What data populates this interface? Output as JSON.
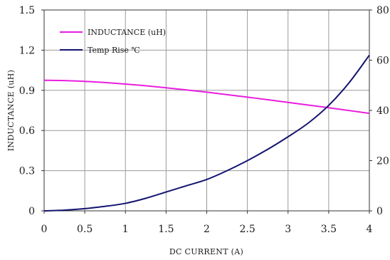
{
  "chart_data": {
    "type": "line",
    "xlabel": "DC CURRENT  (A)",
    "ylabel": "INDUCTANCE (uH)",
    "xlim": [
      0,
      4
    ],
    "ylim": [
      0,
      1.5
    ],
    "y2lim": [
      0,
      80
    ],
    "x_ticks": [
      "0",
      "0.5",
      "1",
      "1.5",
      "2",
      "2.5",
      "3",
      "3.5",
      "4"
    ],
    "y_ticks": [
      "0",
      "0.3",
      "0.6",
      "0.9",
      "1.2",
      "1.5"
    ],
    "y2_ticks": [
      "0",
      "20",
      "40",
      "60",
      "80"
    ],
    "grid": true,
    "legend_position": "top-left",
    "series": [
      {
        "name": "INDUCTANCE (uH)",
        "axis": "left",
        "color": "#e81ee0",
        "x": [
          0,
          0.25,
          0.5,
          0.75,
          1.0,
          1.25,
          1.5,
          1.75,
          2.0,
          2.25,
          2.5,
          2.75,
          3.0,
          3.25,
          3.5,
          3.75,
          4.0
        ],
        "y": [
          0.975,
          0.973,
          0.967,
          0.958,
          0.947,
          0.934,
          0.919,
          0.903,
          0.886,
          0.868,
          0.849,
          0.83,
          0.81,
          0.79,
          0.77,
          0.749,
          0.728
        ]
      },
      {
        "name": "Temp Rise ℃",
        "axis": "right",
        "color": "#141470",
        "x": [
          0,
          0.25,
          0.5,
          0.75,
          1.0,
          1.25,
          1.5,
          1.75,
          2.0,
          2.25,
          2.5,
          2.75,
          3.0,
          3.25,
          3.5,
          3.75,
          4.0
        ],
        "y": [
          0,
          0.3,
          0.9,
          1.8,
          3.0,
          5.0,
          7.5,
          10.0,
          12.5,
          16.0,
          20.0,
          24.5,
          29.5,
          35.0,
          42.0,
          51.0,
          62.0
        ]
      }
    ]
  }
}
